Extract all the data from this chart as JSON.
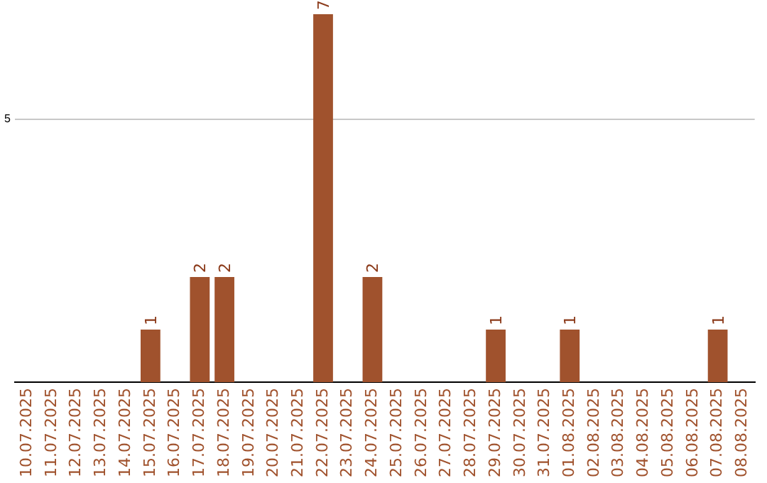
{
  "chart_data": {
    "type": "bar",
    "categories": [
      "10.07.2025",
      "11.07.2025",
      "12.07.2025",
      "13.07.2025",
      "14.07.2025",
      "15.07.2025",
      "16.07.2025",
      "17.07.2025",
      "18.07.2025",
      "19.07.2025",
      "20.07.2025",
      "21.07.2025",
      "22.07.2025",
      "23.07.2025",
      "24.07.2025",
      "25.07.2025",
      "26.07.2025",
      "27.07.2025",
      "28.07.2025",
      "29.07.2025",
      "30.07.2025",
      "31.07.2025",
      "01.08.2025",
      "02.08.2025",
      "03.08.2025",
      "04.08.2025",
      "05.08.2025",
      "06.08.2025",
      "07.08.2025",
      "08.08.2025"
    ],
    "values": [
      0,
      0,
      0,
      0,
      0,
      1,
      0,
      2,
      2,
      0,
      0,
      0,
      7,
      0,
      2,
      0,
      0,
      0,
      0,
      1,
      0,
      0,
      1,
      0,
      0,
      0,
      0,
      0,
      1,
      0
    ],
    "value_labels": [
      null,
      null,
      null,
      null,
      null,
      "1",
      null,
      "2",
      "2",
      null,
      null,
      null,
      "7",
      null,
      "2",
      null,
      null,
      null,
      null,
      "1",
      null,
      null,
      "1",
      null,
      null,
      null,
      null,
      null,
      "1",
      null
    ],
    "color": "#a0522d",
    "ylim": [
      0,
      7
    ],
    "yticks": [
      5
    ],
    "grid": "y"
  }
}
